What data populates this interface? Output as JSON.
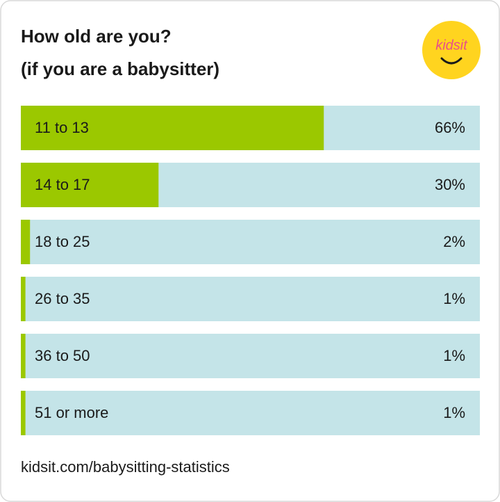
{
  "chart_data": {
    "type": "bar",
    "orientation": "horizontal",
    "title": "How old are you?",
    "subtitle": "(if you are a babysitter)",
    "logo": "kidsit",
    "categories": [
      "11 to 13",
      "14 to 17",
      "18 to 25",
      "26 to 35",
      "36 to 50",
      "51 or more"
    ],
    "values": [
      66,
      30,
      2,
      1,
      1,
      1
    ],
    "value_labels": [
      "66%",
      "30%",
      "2%",
      "1%",
      "1%",
      "1%"
    ],
    "xlim": [
      0,
      100
    ],
    "color": "#9bc800",
    "track_color": "#c4e4e8",
    "source": "kidsit.com/babysitting-statistics"
  }
}
